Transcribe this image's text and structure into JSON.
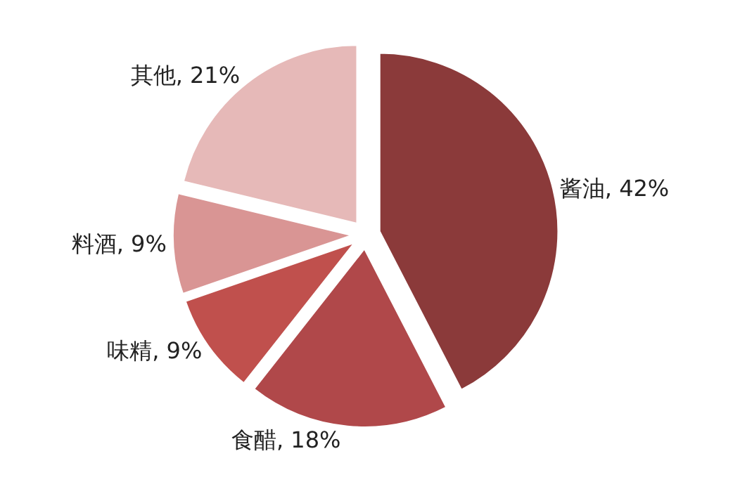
{
  "chart_data": {
    "type": "pie",
    "categories": [
      "酱油",
      "食醋",
      "味精",
      "料酒",
      "其他"
    ],
    "values": [
      42,
      18,
      9,
      9,
      21
    ],
    "value_labels": [
      "42%",
      "18%",
      "9%",
      "9%",
      "21%"
    ],
    "colors": [
      "#8b3a3a",
      "#b0484a",
      "#c0504d",
      "#d99594",
      "#e6b9b8"
    ],
    "legend": false
  }
}
